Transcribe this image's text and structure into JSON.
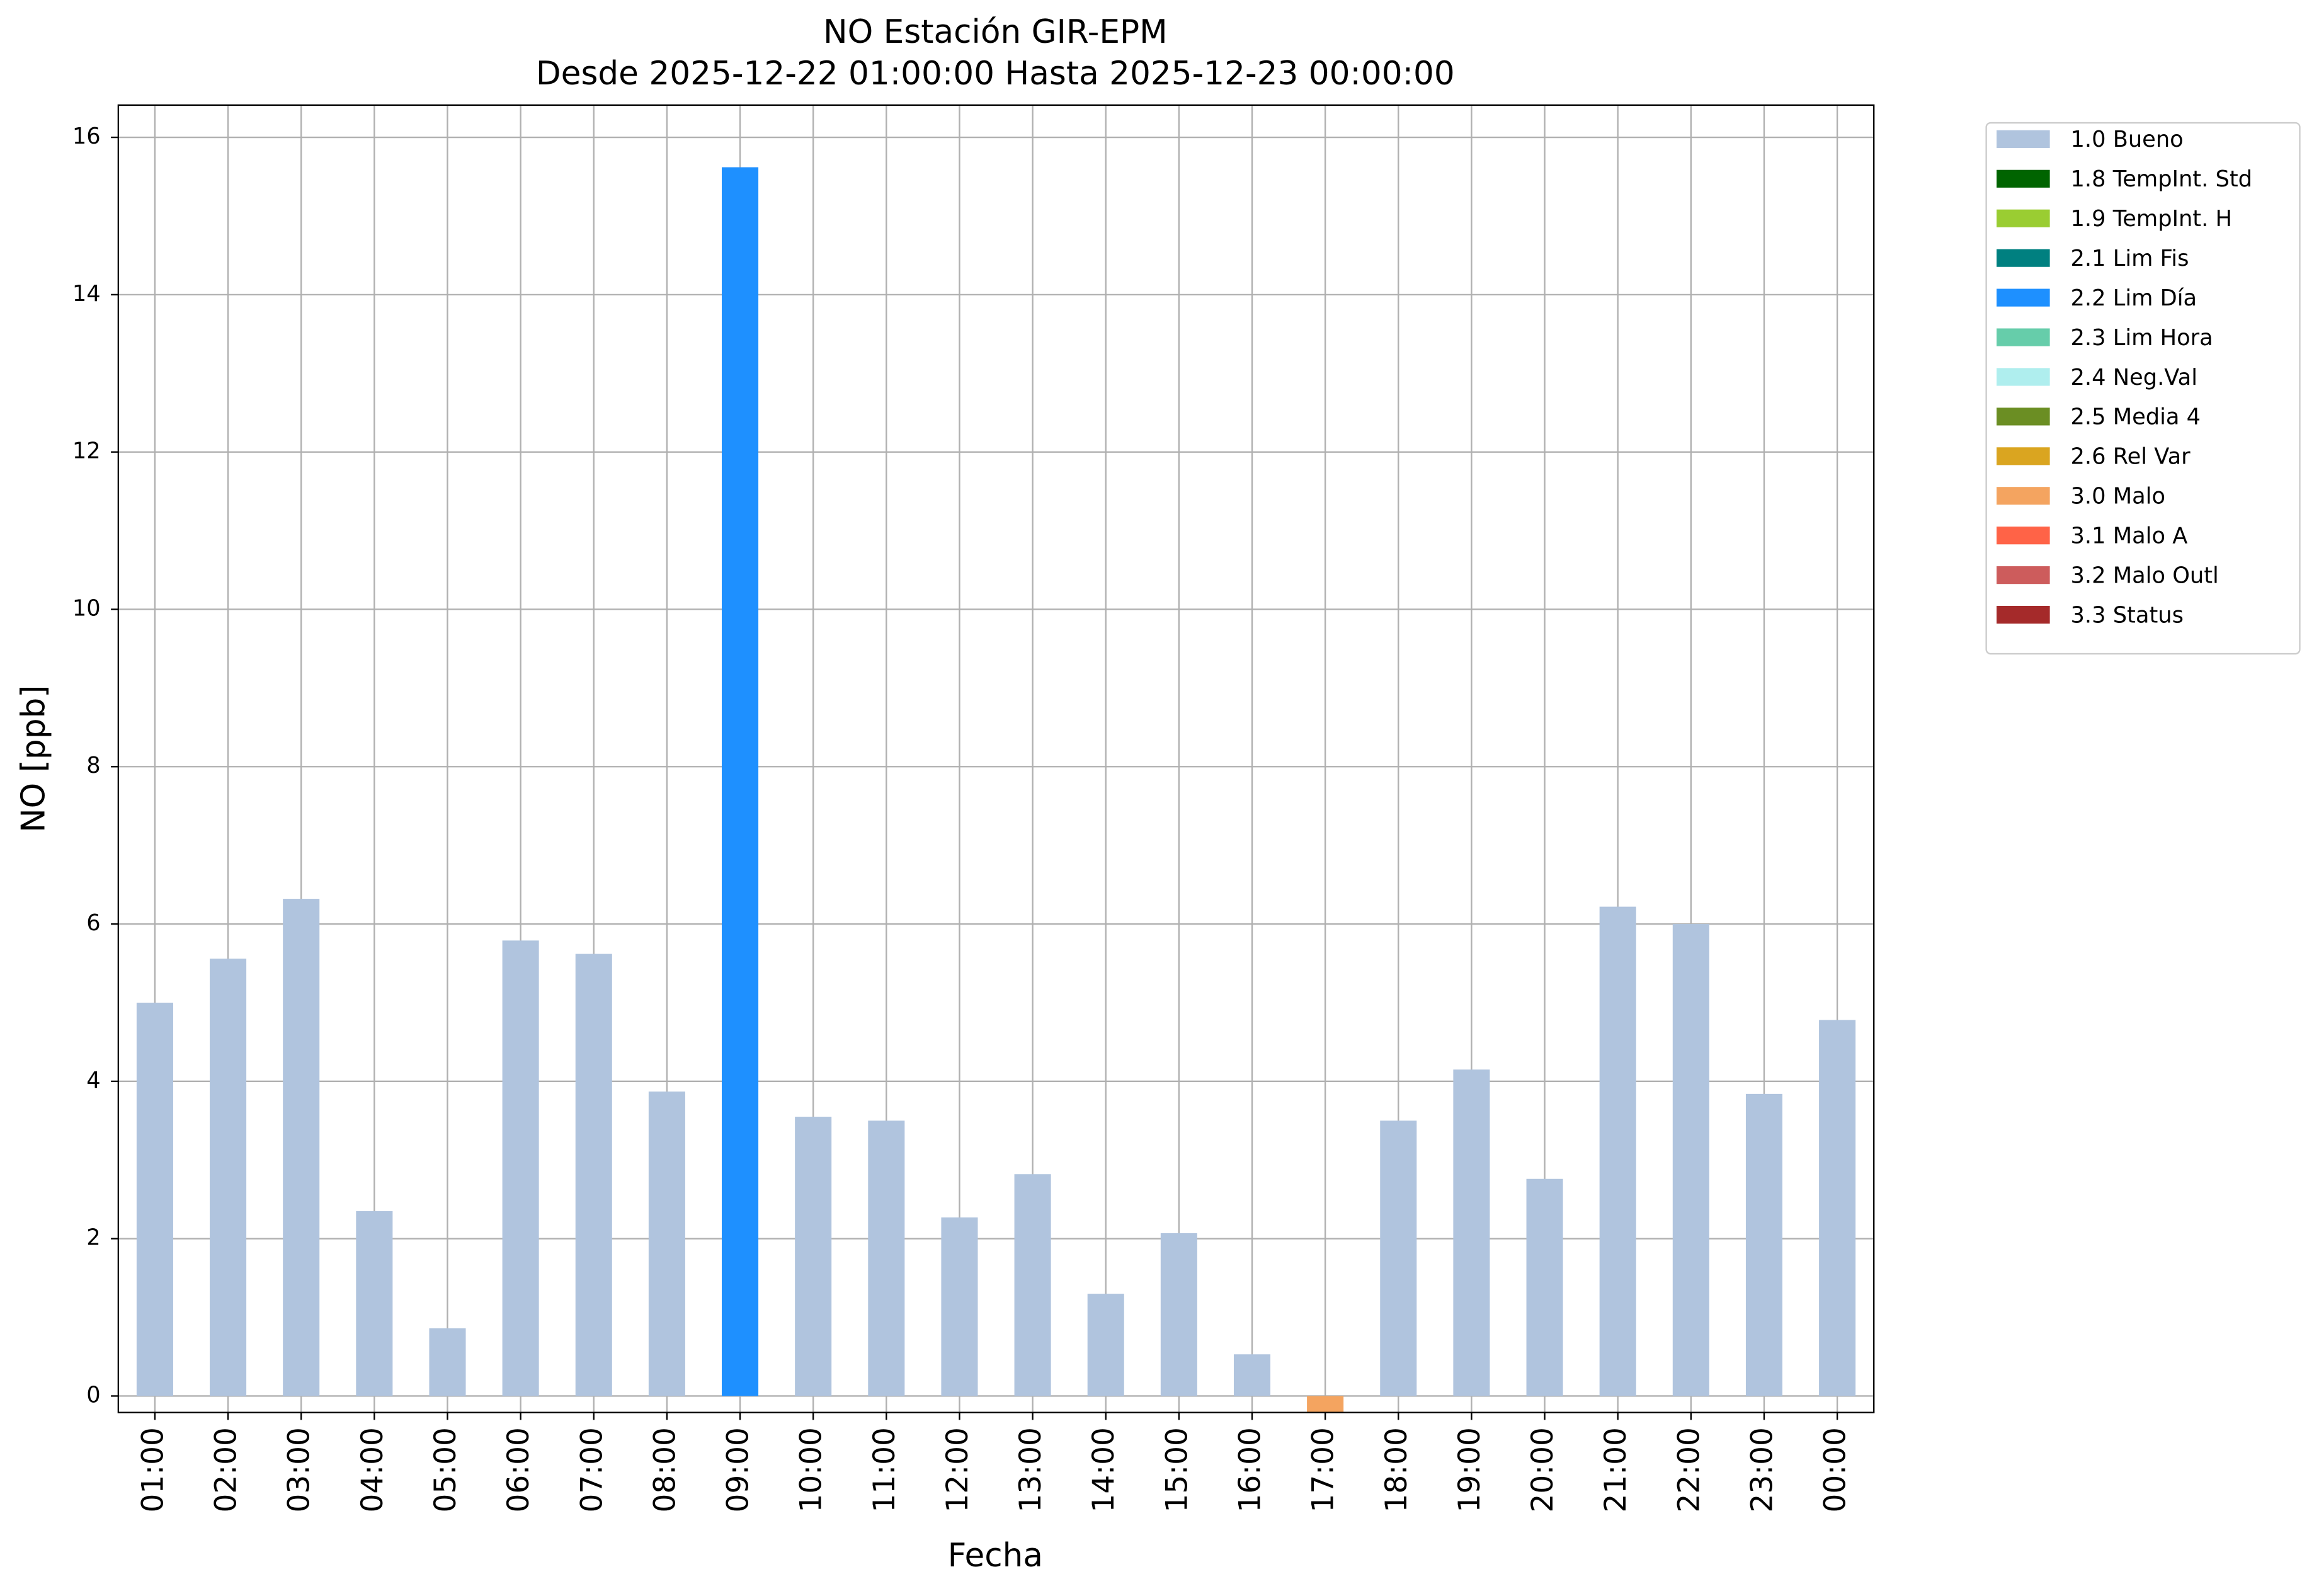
{
  "chart_data": {
    "type": "bar",
    "title": "NO Estación GIR-EPM",
    "subtitle": "Desde 2025-12-22 01:00:00 Hasta 2025-12-23 00:00:00",
    "x_label": "Fecha",
    "y_label": "NO [ppb]",
    "categories": [
      "01:00",
      "02:00",
      "03:00",
      "04:00",
      "05:00",
      "06:00",
      "07:00",
      "08:00",
      "09:00",
      "10:00",
      "11:00",
      "12:00",
      "13:00",
      "14:00",
      "15:00",
      "16:00",
      "17:00",
      "18:00",
      "19:00",
      "20:00",
      "21:00",
      "22:00",
      "23:00",
      "00:00"
    ],
    "series": [
      {
        "name": "1.0 Bueno",
        "color": "#b0c4de",
        "values": [
          5.0,
          5.56,
          6.32,
          2.35,
          0.86,
          5.79,
          5.62,
          3.87,
          null,
          3.55,
          3.5,
          2.27,
          2.82,
          1.3,
          2.07,
          0.53,
          null,
          3.5,
          4.15,
          2.76,
          6.22,
          6.0,
          3.84,
          4.78
        ]
      },
      {
        "name": "1.8 TempInt. Std",
        "color": "#006400",
        "values": [
          null,
          null,
          null,
          null,
          null,
          null,
          null,
          null,
          null,
          null,
          null,
          null,
          null,
          null,
          null,
          null,
          null,
          null,
          null,
          null,
          null,
          null,
          null,
          null
        ]
      },
      {
        "name": "1.9 TempInt. H",
        "color": "#9acd32",
        "values": [
          null,
          null,
          null,
          null,
          null,
          null,
          null,
          null,
          null,
          null,
          null,
          null,
          null,
          null,
          null,
          null,
          null,
          null,
          null,
          null,
          null,
          null,
          null,
          null
        ]
      },
      {
        "name": "2.1 Lim Fis",
        "color": "#008080",
        "values": [
          null,
          null,
          null,
          null,
          null,
          null,
          null,
          null,
          null,
          null,
          null,
          null,
          null,
          null,
          null,
          null,
          null,
          null,
          null,
          null,
          null,
          null,
          null,
          null
        ]
      },
      {
        "name": "2.2 Lim Día",
        "color": "#1e90ff",
        "values": [
          null,
          null,
          null,
          null,
          null,
          null,
          null,
          null,
          15.62,
          null,
          null,
          null,
          null,
          null,
          null,
          null,
          null,
          null,
          null,
          null,
          null,
          null,
          null,
          null
        ]
      },
      {
        "name": "2.3 Lim Hora",
        "color": "#66cdaa",
        "values": [
          null,
          null,
          null,
          null,
          null,
          null,
          null,
          null,
          null,
          null,
          null,
          null,
          null,
          null,
          null,
          null,
          null,
          null,
          null,
          null,
          null,
          null,
          null,
          null
        ]
      },
      {
        "name": "2.4 Neg.Val",
        "color": "#afeeee",
        "values": [
          null,
          null,
          null,
          null,
          null,
          null,
          null,
          null,
          null,
          null,
          null,
          null,
          null,
          null,
          null,
          null,
          null,
          null,
          null,
          null,
          null,
          null,
          null,
          null
        ]
      },
      {
        "name": "2.5 Media 4",
        "color": "#6b8e23",
        "values": [
          null,
          null,
          null,
          null,
          null,
          null,
          null,
          null,
          null,
          null,
          null,
          null,
          null,
          null,
          null,
          null,
          null,
          null,
          null,
          null,
          null,
          null,
          null,
          null
        ]
      },
      {
        "name": "2.6 Rel Var",
        "color": "#daa520",
        "values": [
          null,
          null,
          null,
          null,
          null,
          null,
          null,
          null,
          null,
          null,
          null,
          null,
          null,
          null,
          null,
          null,
          null,
          null,
          null,
          null,
          null,
          null,
          null,
          null
        ]
      },
      {
        "name": "3.0 Malo",
        "color": "#f4a460",
        "values": [
          null,
          null,
          null,
          null,
          null,
          null,
          null,
          null,
          null,
          null,
          null,
          null,
          null,
          null,
          null,
          null,
          -0.21,
          null,
          null,
          null,
          null,
          null,
          null,
          null
        ]
      },
      {
        "name": "3.1 Malo A",
        "color": "#ff6347",
        "values": [
          null,
          null,
          null,
          null,
          null,
          null,
          null,
          null,
          null,
          null,
          null,
          null,
          null,
          null,
          null,
          null,
          null,
          null,
          null,
          null,
          null,
          null,
          null,
          null
        ]
      },
      {
        "name": "3.2 Malo Outl",
        "color": "#cd5c5c",
        "values": [
          null,
          null,
          null,
          null,
          null,
          null,
          null,
          null,
          null,
          null,
          null,
          null,
          null,
          null,
          null,
          null,
          null,
          null,
          null,
          null,
          null,
          null,
          null,
          null
        ]
      },
      {
        "name": "3.3 Status",
        "color": "#a52a2a",
        "values": [
          null,
          null,
          null,
          null,
          null,
          null,
          null,
          null,
          null,
          null,
          null,
          null,
          null,
          null,
          null,
          null,
          null,
          null,
          null,
          null,
          null,
          null,
          null,
          null
        ]
      }
    ],
    "ylim": [
      -0.21,
      16.41
    ],
    "yticks": [
      0,
      2,
      4,
      6,
      8,
      10,
      12,
      14,
      16
    ],
    "grid": true,
    "legend": "outside-right"
  }
}
